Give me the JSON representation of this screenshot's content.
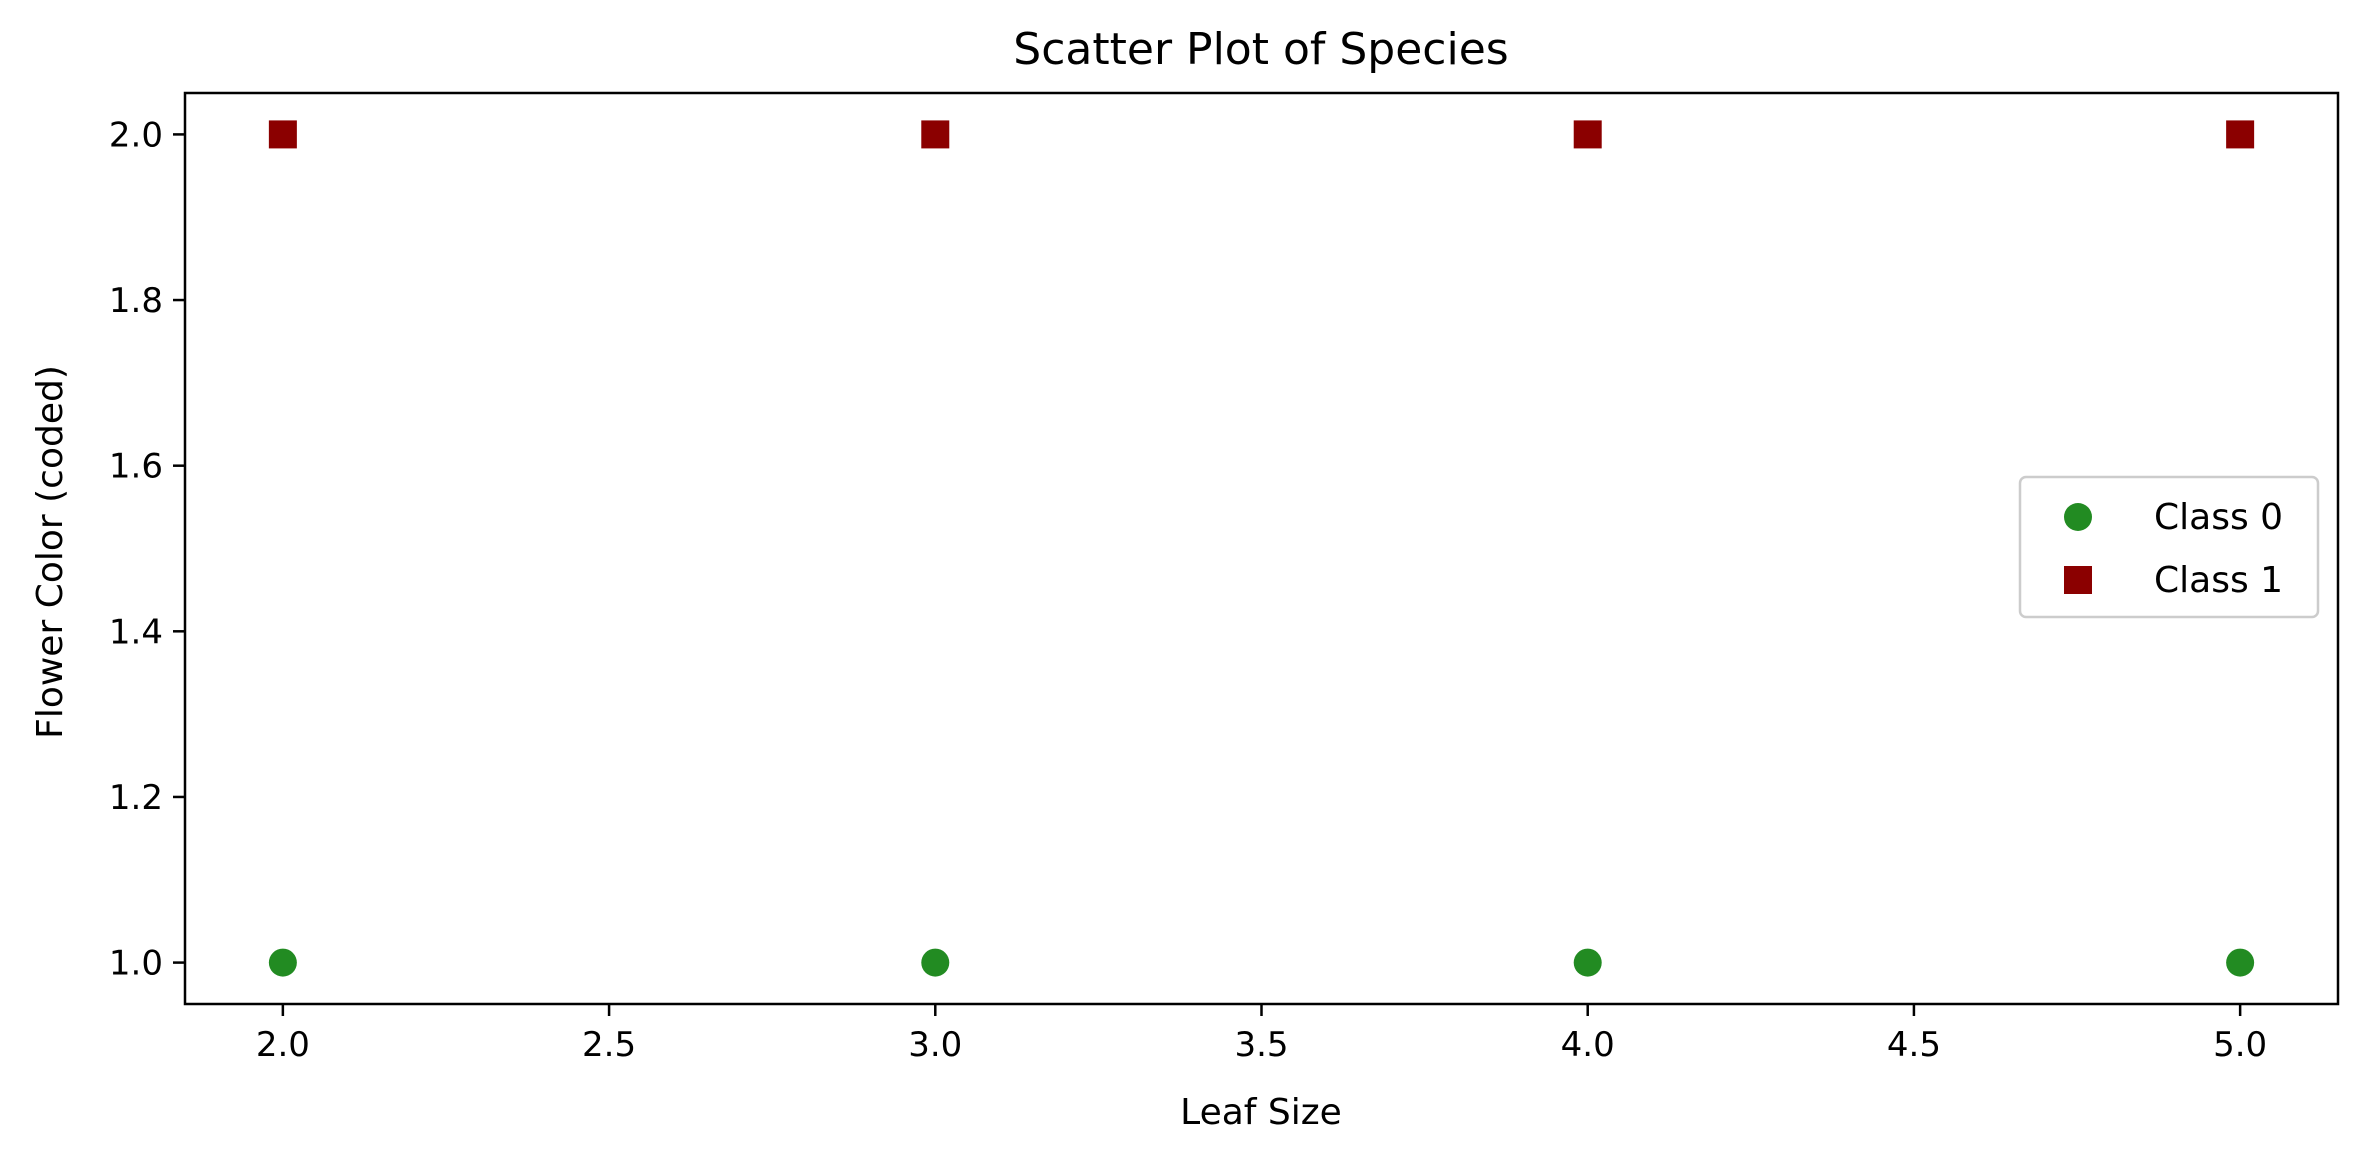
{
  "chart_data": {
    "type": "scatter",
    "title": "Scatter Plot of Species",
    "xlabel": "Leaf Size",
    "ylabel": "Flower Color (coded)",
    "xlim": [
      1.85,
      5.15
    ],
    "ylim": [
      0.95,
      2.05
    ],
    "xticks": [
      2.0,
      2.5,
      3.0,
      3.5,
      4.0,
      4.5,
      5.0
    ],
    "xtick_labels": [
      "2.0",
      "2.5",
      "3.0",
      "3.5",
      "4.0",
      "4.5",
      "5.0"
    ],
    "yticks": [
      1.0,
      1.2,
      1.4,
      1.6,
      1.8,
      2.0
    ],
    "ytick_labels": [
      "1.0",
      "1.2",
      "1.4",
      "1.6",
      "1.8",
      "2.0"
    ],
    "grid": false,
    "legend_position": "center-right",
    "series": [
      {
        "name": "Class 0",
        "marker": "circle",
        "color": "#228b22",
        "x": [
          2,
          3,
          4,
          5
        ],
        "y": [
          1,
          1,
          1,
          1
        ]
      },
      {
        "name": "Class 1",
        "marker": "square",
        "color": "#8b0000",
        "x": [
          2,
          3,
          4,
          5
        ],
        "y": [
          2,
          2,
          2,
          2
        ]
      }
    ]
  }
}
